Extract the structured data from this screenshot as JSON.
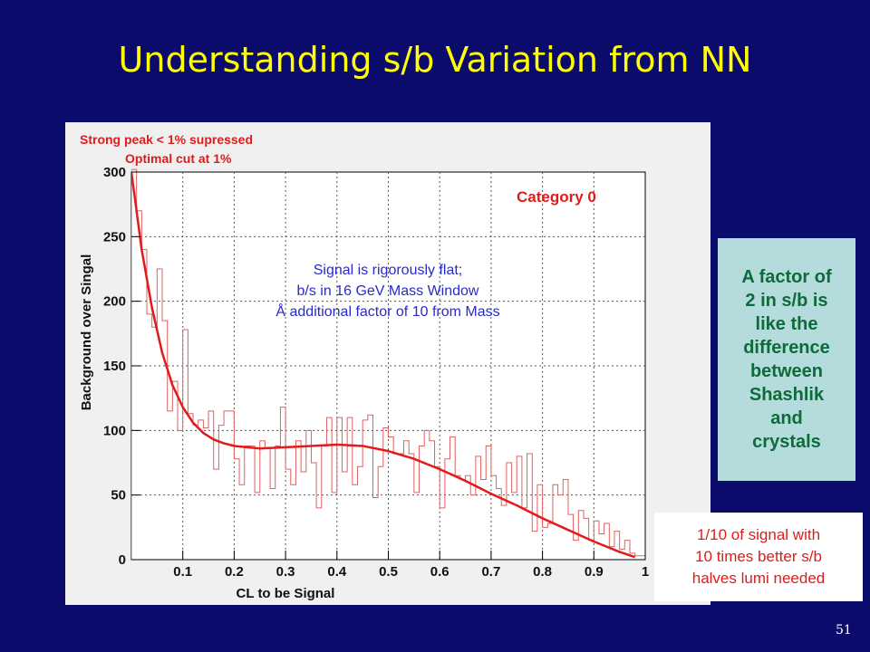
{
  "slide": {
    "title": "Understanding s/b Variation from NN",
    "page_number": "51"
  },
  "annotations": {
    "note_top_1": "Strong peak < 1% supressed",
    "note_top_2": "Optimal cut at 1%",
    "category": "Category  0",
    "signal_note": [
      "Signal is rigorously flat;",
      "b/s in 16 GeV Mass Window",
      "additional factor of 10 from Mass"
    ],
    "signal_note_symbol": "Å",
    "green_box_lines": [
      "A factor of",
      "2 in s/b is",
      "like the",
      "difference",
      "between",
      "Shashlik",
      "and",
      "crystals"
    ],
    "white_box_lines": [
      "1/10 of signal with",
      "10 times better s/b",
      "halves lumi needed"
    ]
  },
  "colors": {
    "background": "#0b0b6b",
    "title": "#ffff00",
    "histogram": "#e06060",
    "fit": "#e11b1b",
    "green_box": "#b4dcdc",
    "green_text": "#0d6b3a"
  },
  "chart_data": {
    "type": "line",
    "title": "",
    "xlabel": "CL to be Signal",
    "ylabel": "Background over Singal",
    "xlim": [
      0,
      1
    ],
    "ylim": [
      0,
      300
    ],
    "grid": true,
    "x_ticks": [
      0.1,
      0.2,
      0.3,
      0.4,
      0.5,
      0.6,
      0.7,
      0.8,
      0.9,
      1
    ],
    "x_tick_labels": [
      "0.1",
      "0.2",
      "0.3",
      "0.4",
      "0.5",
      "0.6",
      "0.7",
      "0.8",
      "0.9",
      "1"
    ],
    "y_ticks": [
      0,
      50,
      100,
      150,
      200,
      250,
      300
    ],
    "y_tick_labels": [
      "0",
      "50",
      "100",
      "150",
      "200",
      "250",
      "300"
    ],
    "histogram": {
      "bin_width": 0.01,
      "values": [
        302,
        270,
        240,
        190,
        180,
        225,
        185,
        115,
        138,
        100,
        178,
        113,
        104,
        108,
        102,
        115,
        70,
        104,
        115,
        115,
        78,
        58,
        88,
        88,
        52,
        92,
        86,
        55,
        88,
        118,
        70,
        58,
        92,
        68,
        100,
        75,
        40,
        88,
        110,
        52,
        110,
        68,
        110,
        58,
        72,
        108,
        112,
        48,
        72,
        102,
        95,
        82,
        82,
        92,
        82,
        52,
        88,
        100,
        92,
        72,
        40,
        78,
        95,
        65,
        62,
        65,
        50,
        80,
        62,
        88,
        65,
        55,
        42,
        75,
        52,
        80,
        40,
        82,
        22,
        58,
        25,
        28,
        58,
        50,
        62,
        35,
        15,
        38,
        32,
        15,
        30,
        20,
        28,
        10,
        22,
        8,
        15,
        5,
        3,
        3
      ]
    },
    "fit": {
      "x": [
        0.0,
        0.02,
        0.04,
        0.06,
        0.08,
        0.1,
        0.12,
        0.14,
        0.16,
        0.18,
        0.2,
        0.25,
        0.3,
        0.35,
        0.4,
        0.45,
        0.5,
        0.55,
        0.6,
        0.65,
        0.7,
        0.75,
        0.8,
        0.85,
        0.9,
        0.95,
        0.98
      ],
      "y": [
        300,
        240,
        195,
        160,
        135,
        118,
        106,
        98,
        93,
        90,
        88,
        86,
        87,
        88,
        89,
        88,
        84,
        78,
        70,
        61,
        51,
        42,
        32,
        23,
        14,
        6,
        2
      ]
    }
  }
}
